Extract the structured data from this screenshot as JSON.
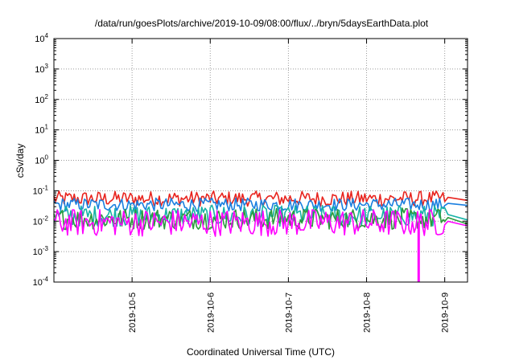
{
  "chart_data": {
    "type": "line",
    "title": "/data/run/goesPlots/archive/2019-10-09/08:00/flux/../bryn/5daysEarthData.plot",
    "xlabel": "Coordinated Universal Time (UTC)",
    "ylabel": "cSv/day",
    "y_scale": "log",
    "ylim_exp": [
      -4,
      4
    ],
    "y_ticks": [
      {
        "base": "10",
        "exp": "4"
      },
      {
        "base": "10",
        "exp": "3"
      },
      {
        "base": "10",
        "exp": "2"
      },
      {
        "base": "10",
        "exp": "1"
      },
      {
        "base": "10",
        "exp": "0"
      },
      {
        "base": "10",
        "exp": "-1"
      },
      {
        "base": "10",
        "exp": "-2"
      },
      {
        "base": "10",
        "exp": "-3"
      },
      {
        "base": "10",
        "exp": "-4"
      }
    ],
    "xlim": [
      "2019-10-04T00:00",
      "2019-10-09T07:00"
    ],
    "x_ticks": [
      "2019-10-5",
      "2019-10-6",
      "2019-10-7",
      "2019-10-8",
      "2019-10-9"
    ],
    "grid": true,
    "series": [
      {
        "color": "#e8241e",
        "base": 0.055,
        "spread": 0.25,
        "final": 0.048,
        "dropouts": [
          {
            "from": 0.08,
            "to": 0.028
          }
        ]
      },
      {
        "color": "#1a7fe0",
        "base": 0.035,
        "spread": 0.22,
        "final": 0.033,
        "dropouts": []
      },
      {
        "color": "#17b2a6",
        "base": 0.015,
        "spread": 0.35,
        "final": 0.011,
        "dropouts": []
      },
      {
        "color": "#2b9a3c",
        "base": 0.012,
        "spread": 0.35,
        "final": 0.008,
        "dropouts": []
      },
      {
        "color": "#ff00ff",
        "base": 0.009,
        "spread": 0.45,
        "final": 0.007,
        "dropouts": [
          {
            "at": "2019-10-08T16:00",
            "value": 0.0001
          }
        ]
      }
    ],
    "colors": {
      "grid": "#9a9a9a",
      "axis": "#000000"
    }
  }
}
